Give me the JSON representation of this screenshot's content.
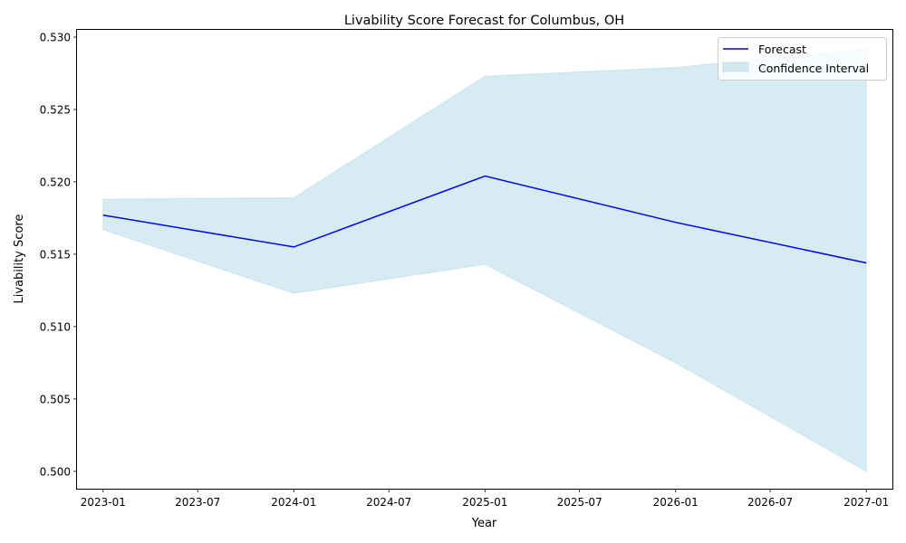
{
  "chart_data": {
    "type": "line",
    "title": "Livability Score Forecast for Columbus, OH",
    "xlabel": "Year",
    "ylabel": "Livability Score",
    "x": [
      "2023-01",
      "2024-01",
      "2025-01",
      "2026-01",
      "2027-01"
    ],
    "x_ticks": [
      "2023-01",
      "2023-07",
      "2024-01",
      "2024-07",
      "2025-01",
      "2025-07",
      "2026-01",
      "2026-07",
      "2027-01"
    ],
    "y_ticks": [
      "0.500",
      "0.505",
      "0.510",
      "0.515",
      "0.520",
      "0.525",
      "0.530"
    ],
    "xlim": [
      "2022-11-12",
      "2027-02-20"
    ],
    "ylim": [
      0.4988,
      0.5305
    ],
    "series": [
      {
        "name": "Forecast",
        "type": "line",
        "color": "#0000ff",
        "values": [
          0.5177,
          0.5155,
          0.5204,
          0.5172,
          0.5144
        ]
      },
      {
        "name": "Confidence Interval",
        "type": "band",
        "color": "#add8e6",
        "lower": [
          0.5167,
          0.5123,
          0.5143,
          0.5075,
          0.5
        ],
        "upper": [
          0.5188,
          0.5189,
          0.5273,
          0.5279,
          0.5292
        ]
      }
    ],
    "grid": false,
    "legend_position": "top-right"
  }
}
